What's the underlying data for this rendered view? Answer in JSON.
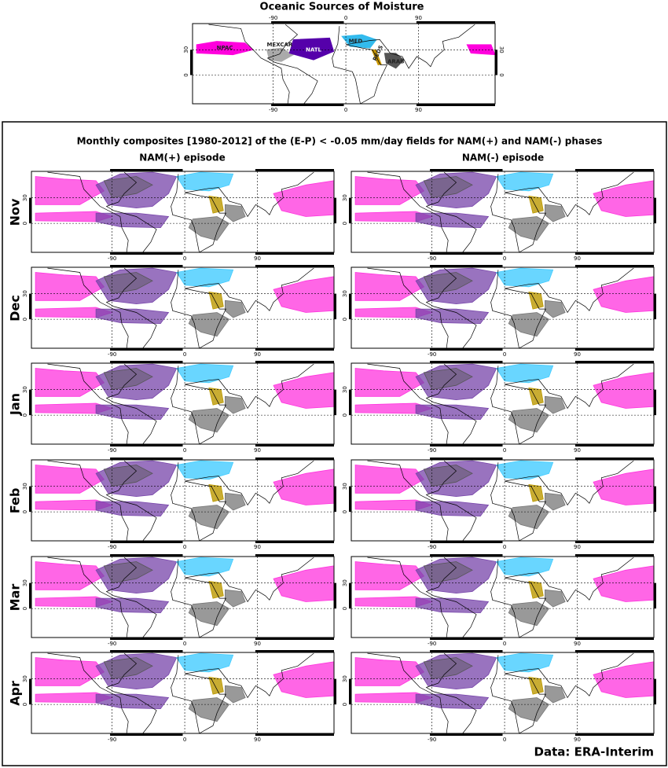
{
  "top_map": {
    "title": "Oceanic Sources of Moisture",
    "regions": [
      "NPAC",
      "MEXCAR",
      "NATL",
      "MED",
      "REDS",
      "ARAB"
    ],
    "lon_ticks": [
      "-90",
      "0",
      "90"
    ],
    "lat_ticks": [
      "30",
      "0"
    ]
  },
  "main": {
    "title": "Monthly composites [1980-2012] of the (E-P) < -0.05 mm/day fields for NAM(+) and NAM(-) phases",
    "columns": [
      "NAM(+) episode",
      "NAM(-) episode"
    ],
    "rows": [
      "Nov",
      "Dec",
      "Jan",
      "Feb",
      "Mar",
      "Apr"
    ],
    "lon_ticks": [
      "-90",
      "0",
      "90"
    ],
    "lat_ticks": [
      "30",
      "0"
    ]
  },
  "footer": "Data: ERA-Interim"
}
